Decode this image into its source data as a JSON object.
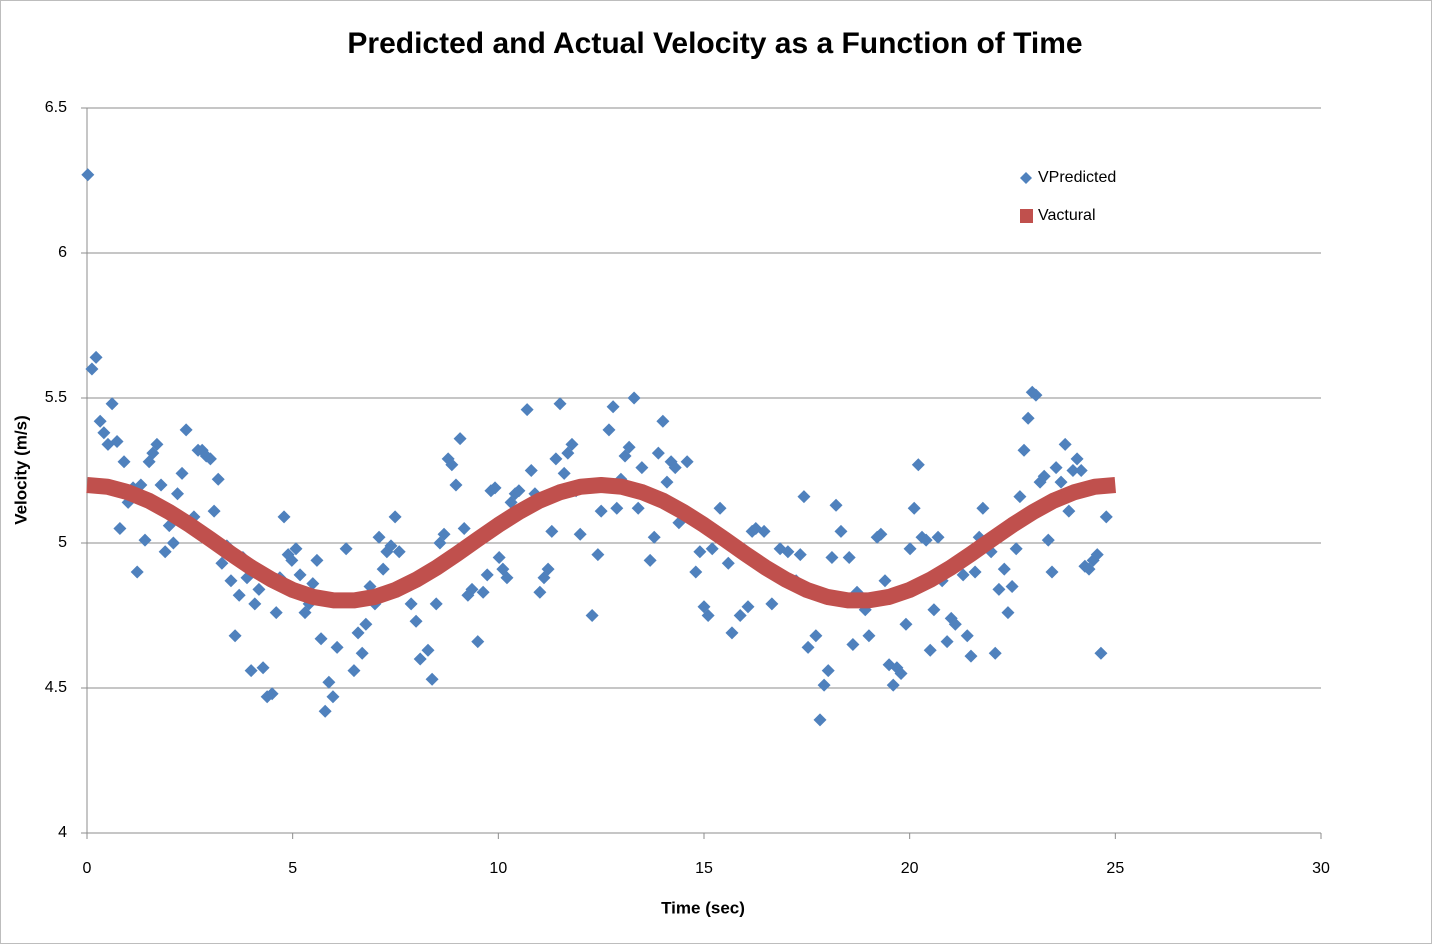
{
  "chart_data": {
    "type": "scatter",
    "title": "Predicted and Actual Velocity as a Function of Time",
    "x_label": "Time (sec)",
    "y_label": "Velocity (m/s)",
    "xlim": [
      0,
      30
    ],
    "xticks": [
      0,
      5,
      10,
      15,
      20,
      25,
      30
    ],
    "ylim": [
      4,
      6.5
    ],
    "yticks": [
      4,
      4.5,
      5,
      5.5,
      6,
      6.5
    ],
    "grid": true,
    "legend": "upper right",
    "series": [
      {
        "name": "VPredicted",
        "type": "scatter",
        "color": "#4f81bd",
        "x": [
          0.02,
          0.12,
          0.22,
          0.32,
          0.41,
          0.51,
          0.61,
          0.73,
          0.8,
          0.9,
          1.0,
          1.12,
          1.22,
          1.31,
          1.41,
          1.51,
          1.6,
          1.7,
          1.8,
          1.9,
          2.0,
          2.1,
          2.2,
          2.31,
          2.41,
          2.6,
          2.7,
          2.8,
          2.9,
          3.0,
          3.09,
          3.19,
          3.28,
          3.4,
          3.5,
          3.6,
          3.7,
          3.79,
          3.89,
          3.99,
          4.08,
          4.18,
          4.28,
          4.38,
          4.5,
          4.6,
          4.69,
          4.79,
          4.89,
          4.98,
          5.08,
          5.18,
          5.3,
          5.4,
          5.49,
          5.59,
          5.69,
          5.79,
          5.88,
          5.98,
          6.08,
          6.3,
          6.49,
          6.59,
          6.69,
          6.78,
          6.88,
          7.0,
          7.1,
          7.2,
          7.29,
          7.39,
          7.49,
          7.59,
          7.88,
          8.0,
          8.1,
          8.29,
          8.39,
          8.49,
          8.58,
          8.68,
          8.78,
          8.87,
          8.97,
          9.07,
          9.17,
          9.26,
          9.36,
          9.5,
          9.63,
          9.73,
          9.82,
          9.92,
          10.02,
          10.11,
          10.21,
          10.31,
          10.41,
          10.5,
          10.7,
          10.8,
          10.89,
          11.01,
          11.11,
          11.21,
          11.3,
          11.4,
          11.5,
          11.6,
          11.69,
          11.79,
          11.89,
          11.99,
          12.28,
          12.42,
          12.5,
          12.69,
          12.79,
          12.88,
          12.98,
          13.08,
          13.18,
          13.3,
          13.4,
          13.49,
          13.69,
          13.79,
          13.89,
          14.0,
          14.1,
          14.2,
          14.3,
          14.39,
          14.59,
          14.8,
          14.9,
          15.0,
          15.1,
          15.2,
          15.39,
          15.59,
          15.68,
          15.88,
          16.07,
          16.17,
          16.26,
          16.46,
          16.65,
          16.85,
          17.04,
          17.24,
          17.34,
          17.43,
          17.53,
          17.72,
          17.82,
          17.92,
          18.02,
          18.11,
          18.21,
          18.33,
          18.53,
          18.62,
          18.72,
          18.92,
          19.01,
          19.11,
          19.21,
          19.3,
          19.4,
          19.5,
          19.6,
          19.69,
          19.79,
          19.91,
          20.01,
          20.11,
          20.21,
          20.3,
          20.4,
          20.5,
          20.59,
          20.69,
          20.79,
          20.91,
          21.01,
          21.11,
          21.3,
          21.4,
          21.49,
          21.59,
          21.69,
          21.78,
          21.98,
          22.08,
          22.17,
          22.3,
          22.39,
          22.49,
          22.59,
          22.68,
          22.78,
          22.88,
          22.98,
          23.07,
          23.17,
          23.27,
          23.37,
          23.46,
          23.56,
          23.68,
          23.78,
          23.87,
          23.97,
          24.07,
          24.17,
          24.26,
          24.36,
          24.46,
          24.56,
          24.65,
          24.78
        ],
        "values": [
          6.27,
          5.6,
          5.64,
          5.42,
          5.38,
          5.34,
          5.48,
          5.35,
          5.05,
          5.28,
          5.14,
          5.19,
          4.9,
          5.2,
          5.01,
          5.28,
          5.31,
          5.34,
          5.2,
          4.97,
          5.06,
          5.0,
          5.17,
          5.24,
          5.39,
          5.09,
          5.32,
          5.32,
          5.3,
          5.29,
          5.11,
          5.22,
          4.93,
          4.99,
          4.87,
          4.68,
          4.82,
          4.95,
          4.88,
          4.56,
          4.79,
          4.84,
          4.57,
          4.47,
          4.48,
          4.76,
          4.88,
          5.09,
          4.96,
          4.94,
          4.98,
          4.89,
          4.76,
          4.79,
          4.86,
          4.94,
          4.67,
          4.42,
          4.52,
          4.47,
          4.64,
          4.98,
          4.56,
          4.69,
          4.62,
          4.72,
          4.85,
          4.79,
          5.02,
          4.91,
          4.97,
          4.99,
          5.09,
          4.97,
          4.79,
          4.73,
          4.6,
          4.63,
          4.53,
          4.79,
          5.0,
          5.03,
          5.29,
          5.27,
          5.2,
          5.36,
          5.05,
          4.82,
          4.84,
          4.66,
          4.83,
          4.89,
          5.18,
          5.19,
          4.95,
          4.91,
          4.88,
          5.14,
          5.17,
          5.18,
          5.46,
          5.25,
          5.17,
          4.83,
          4.88,
          4.91,
          5.04,
          5.29,
          5.48,
          5.24,
          5.31,
          5.34,
          5.18,
          5.03,
          4.75,
          4.96,
          5.11,
          5.39,
          5.47,
          5.12,
          5.22,
          5.3,
          5.33,
          5.5,
          5.12,
          5.26,
          4.94,
          5.02,
          5.31,
          5.42,
          5.21,
          5.28,
          5.26,
          5.07,
          5.28,
          4.9,
          4.97,
          4.78,
          4.75,
          4.98,
          5.12,
          4.93,
          4.69,
          4.75,
          4.78,
          5.04,
          5.05,
          5.04,
          4.79,
          4.98,
          4.97,
          4.87,
          4.96,
          5.16,
          4.64,
          4.68,
          4.39,
          4.51,
          4.56,
          4.95,
          5.13,
          5.04,
          4.95,
          4.65,
          4.83,
          4.77,
          4.68,
          4.8,
          5.02,
          5.03,
          4.87,
          4.58,
          4.51,
          4.57,
          4.55,
          4.72,
          4.98,
          5.12,
          5.27,
          5.02,
          5.01,
          4.63,
          4.77,
          5.02,
          4.87,
          4.66,
          4.74,
          4.72,
          4.89,
          4.68,
          4.61,
          4.9,
          5.02,
          5.12,
          4.97,
          4.62,
          4.84,
          4.91,
          4.76,
          4.85,
          4.98,
          5.16,
          5.32,
          5.43,
          5.52,
          5.51,
          5.21,
          5.23,
          5.01,
          4.9,
          5.26,
          5.21,
          5.34,
          5.11,
          5.25,
          5.29,
          5.25,
          4.92,
          4.91,
          4.94,
          4.96,
          4.62,
          5.09
        ]
      },
      {
        "name": "Vactural",
        "type": "line",
        "color": "#c0504d",
        "x": [
          0,
          0.5,
          1,
          1.5,
          2,
          2.5,
          3,
          3.5,
          4,
          4.5,
          5,
          5.5,
          6,
          6.5,
          7,
          7.5,
          8,
          8.5,
          9,
          9.5,
          10,
          10.5,
          11,
          11.5,
          12,
          12.5,
          13,
          13.5,
          14,
          14.5,
          15,
          15.5,
          16,
          16.5,
          17,
          17.5,
          18,
          18.5,
          19,
          19.5,
          20,
          20.5,
          21,
          21.5,
          22,
          22.5,
          23,
          23.5,
          24,
          24.5,
          25
        ],
        "values": [
          5.2,
          5.194,
          5.175,
          5.146,
          5.107,
          5.062,
          5.013,
          4.963,
          4.915,
          4.873,
          4.838,
          4.814,
          4.802,
          4.802,
          4.814,
          4.838,
          4.873,
          4.915,
          4.963,
          5.013,
          5.062,
          5.107,
          5.146,
          5.175,
          5.194,
          5.2,
          5.194,
          5.175,
          5.146,
          5.107,
          5.062,
          5.013,
          4.963,
          4.915,
          4.873,
          4.838,
          4.814,
          4.802,
          4.802,
          4.814,
          4.838,
          4.873,
          4.915,
          4.963,
          5.013,
          5.062,
          5.107,
          5.146,
          5.175,
          5.194,
          5.2
        ]
      }
    ]
  }
}
